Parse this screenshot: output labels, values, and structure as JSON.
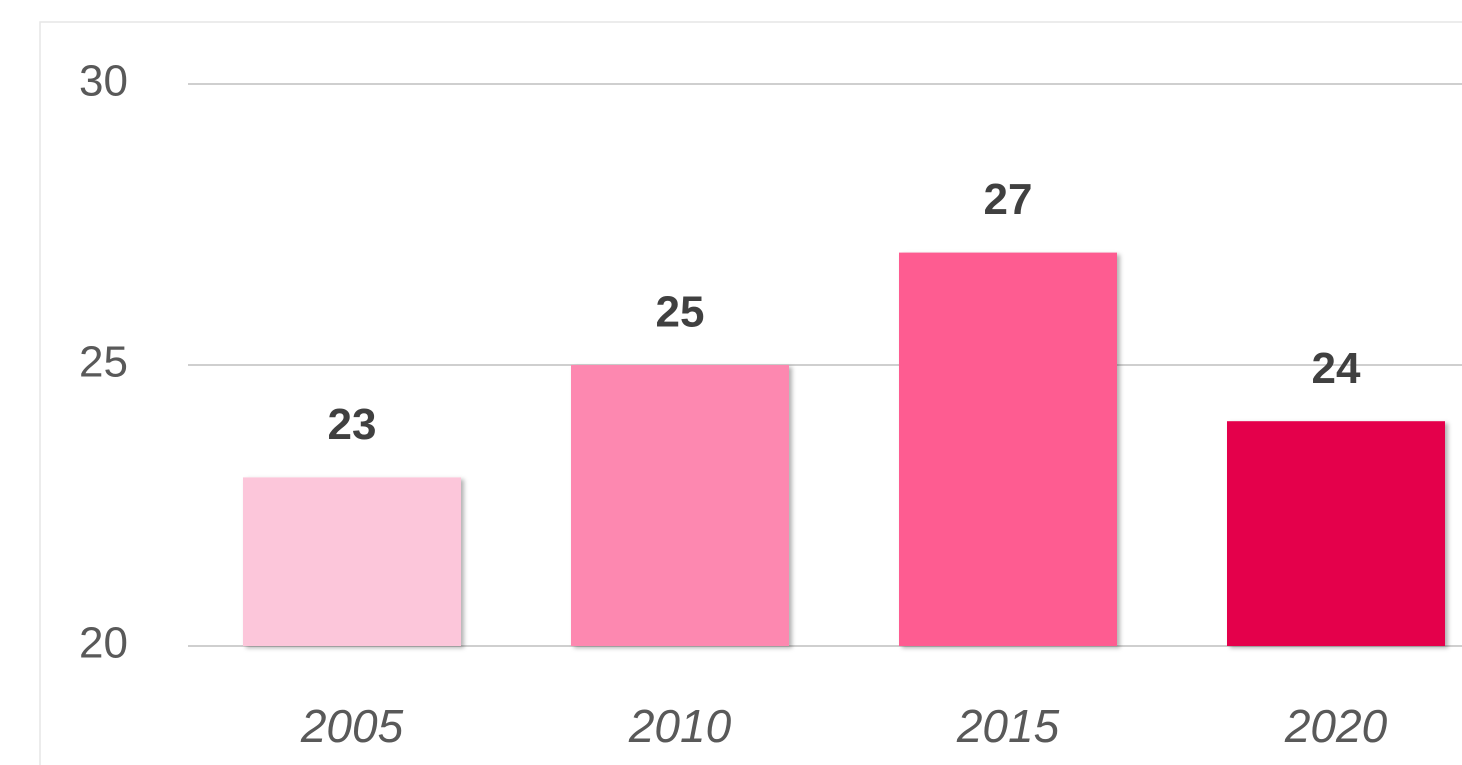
{
  "chart_data": {
    "type": "bar",
    "categories": [
      "2005",
      "2010",
      "2015",
      "2020"
    ],
    "values": [
      23,
      25,
      27,
      24
    ],
    "colors": [
      "#fcc6da",
      "#fd88b0",
      "#fe5c91",
      "#e4004b"
    ],
    "ylim": [
      20,
      30
    ],
    "yticks": [
      20,
      25,
      30
    ],
    "grid": true
  }
}
